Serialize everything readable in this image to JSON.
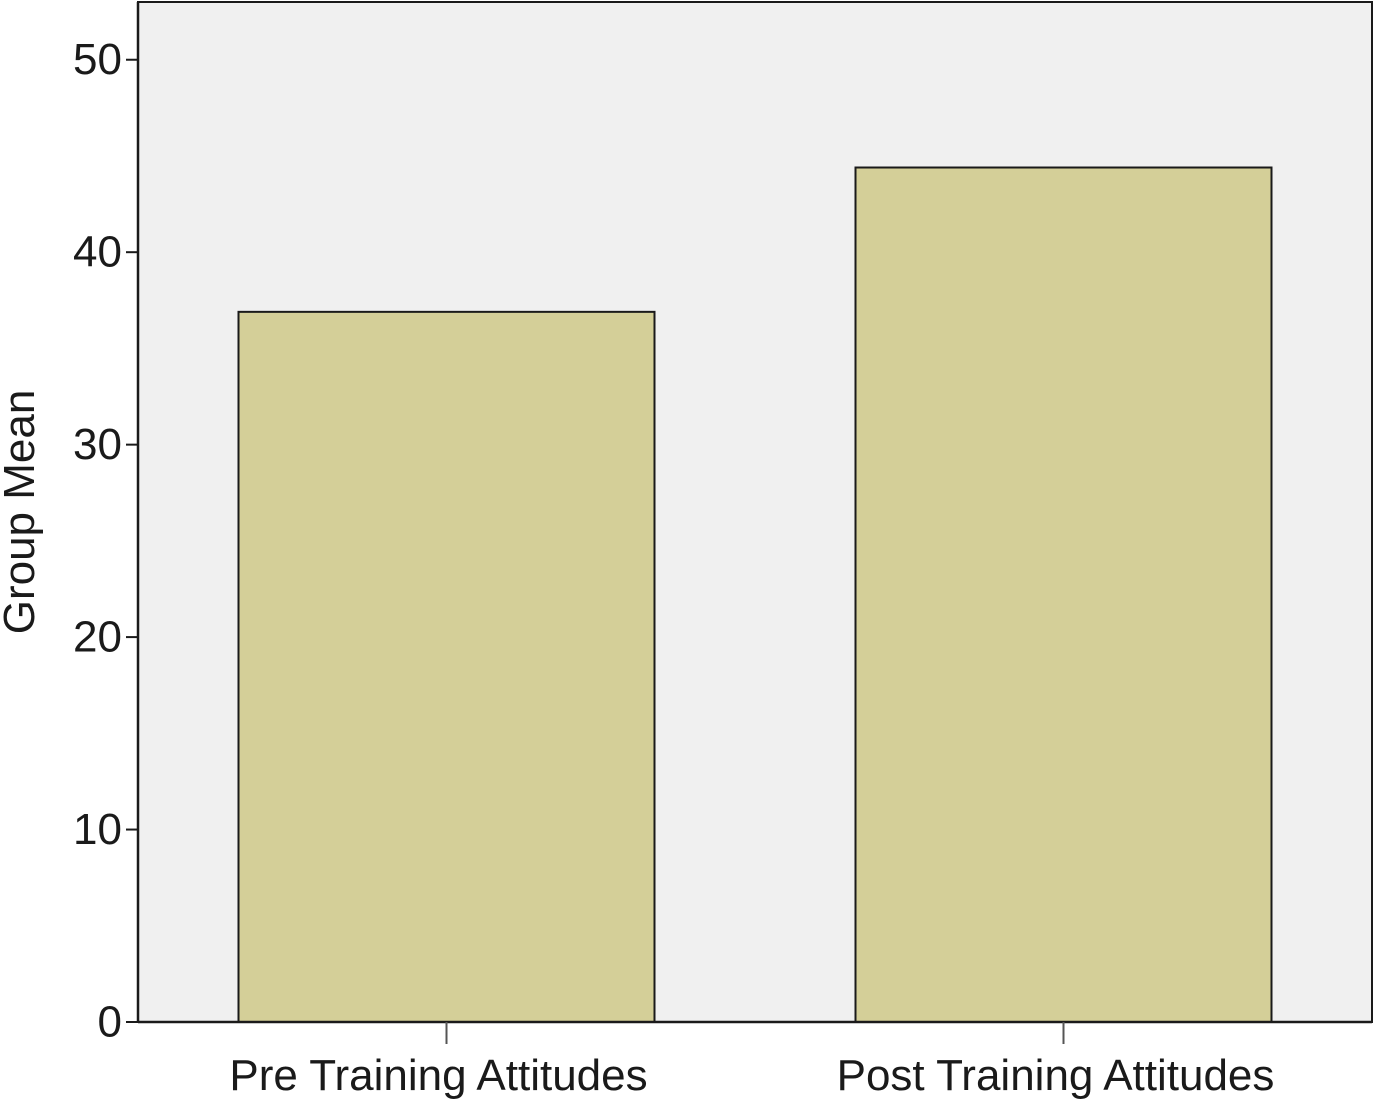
{
  "chart_data": {
    "type": "bar",
    "title": "",
    "xlabel": "",
    "ylabel": "Group Mean",
    "categories": [
      "Pre Training Attitudes",
      "Post Training Attitudes"
    ],
    "values": [
      36.9,
      44.4
    ],
    "ylim": [
      0,
      53
    ],
    "yticks": [
      "0",
      "10",
      "20",
      "30",
      "40",
      "50"
    ],
    "grid": false,
    "legend": "none",
    "colors": {
      "plot_background": "#f0f0f0",
      "bar_fill": "#d4cf98",
      "bar_stroke": "#1a1a1a",
      "axis": "#1a1a1a"
    }
  }
}
